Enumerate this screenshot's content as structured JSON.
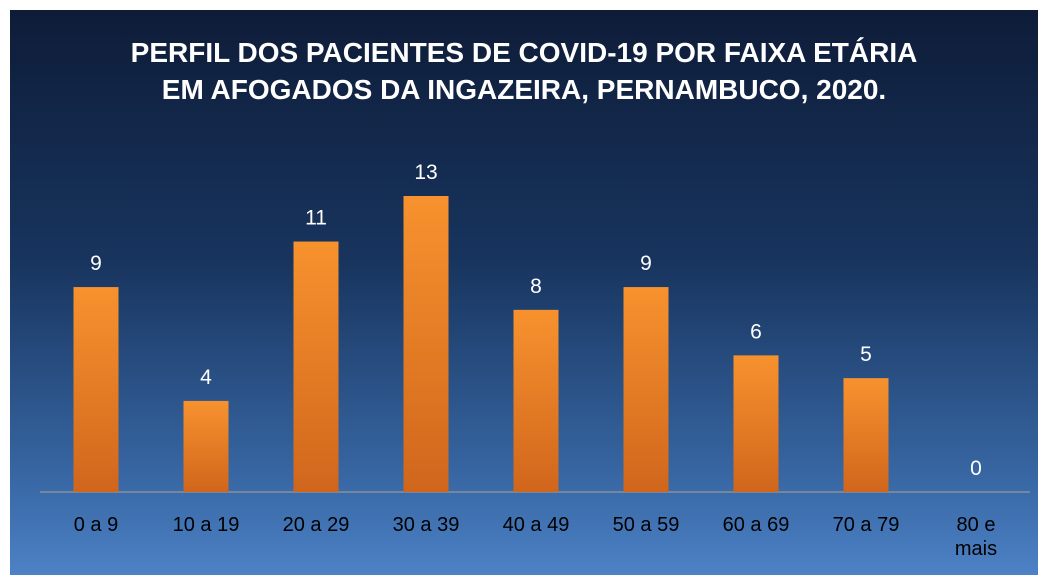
{
  "chart_data": {
    "type": "bar",
    "title": "PERFIL DOS PACIENTES DE COVID-19 POR FAIXA ETÁRIA EM AFOGADOS DA INGAZEIRA, PERNAMBUCO, 2020.",
    "categories": [
      "0 a 9",
      "10 a 19",
      "20 a 29",
      "30 a 39",
      "40 a 49",
      "50 a 59",
      "60 a 69",
      "70 a 79",
      "80 e mais"
    ],
    "values": [
      9,
      4,
      11,
      13,
      8,
      9,
      6,
      5,
      0
    ],
    "color": "#f7922e",
    "ylim": [
      0,
      13
    ]
  }
}
